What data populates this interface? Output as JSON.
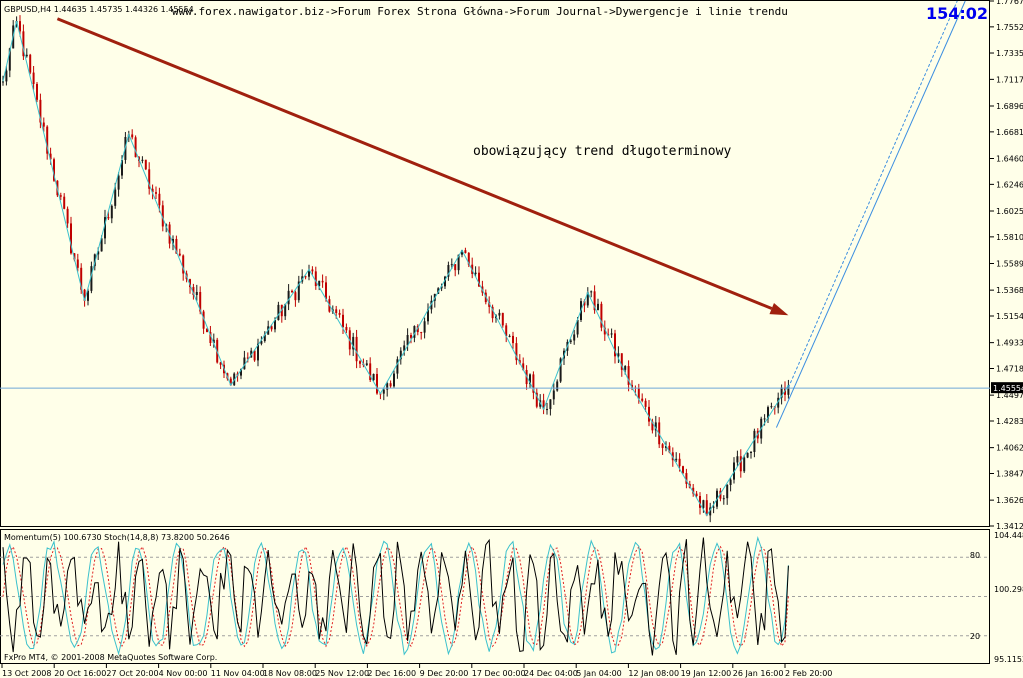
{
  "window": {
    "symbol_info": "GBPUSD,H4  1.44635 1.45735 1.44326 1.45554",
    "breadcrumb": "www.forex.nawigator.biz->Forum Forex Strona Główna->Forum Journal->Dywergencje i linie trendu",
    "timer": "154:02",
    "annotation": "obowiązujący trend długoterminowy",
    "copyright": "FxPro MT4, © 2001-2008 MetaQuotes Software Corp."
  },
  "colors": {
    "background": "#FFFFE9",
    "bull_candle": "#1a1a1a",
    "bear_candle": "#C00000",
    "zigzag": "#3BC1CC",
    "trend_arrow": "#A0200E",
    "bid_line": "#6FA8D8",
    "projection": "#3B8EE0",
    "timer": "#0000EE",
    "momentum": "#000000",
    "stoch_main": "#3BC1CC",
    "stoch_signal": "#E02020"
  },
  "chart_data": [
    {
      "type": "candlestick",
      "title": "GBPUSD,H4  1.44635 1.45735 1.44326 1.45554",
      "current_price": 1.45554,
      "current_price_label": "1.45554",
      "ylim": [
        1.3412,
        1.7767
      ],
      "price_ticks": [
        "1.77670",
        "1.75525",
        "1.73355",
        "1.71170",
        "1.68960",
        "1.66815",
        "1.64605",
        "1.62460",
        "1.60250",
        "1.58105",
        "1.55895",
        "1.53685",
        "1.51540",
        "1.49330",
        "1.47185",
        "1.44975",
        "1.42830",
        "1.40620",
        "1.38475",
        "1.36265",
        "1.34120"
      ],
      "time_ticks": [
        "13 Oct 2008",
        "20 Oct 16:00",
        "27 Oct 20:00",
        "4 Nov 00:00",
        "11 Nov 04:00",
        "18 Nov 08:00",
        "25 Nov 12:00",
        "2 Dec 16:00",
        "9 Dec 20:00",
        "17 Dec 00:00",
        "24 Dec 04:00",
        "5 Jan 04:00",
        "12 Jan 08:00",
        "19 Jan 12:00",
        "26 Jan 16:00",
        "2 Feb 20:00"
      ],
      "zigzag_pivots": [
        {
          "bar": 0,
          "price": 1.71
        },
        {
          "bar": 4,
          "price": 1.76
        },
        {
          "bar": 24,
          "price": 1.528
        },
        {
          "bar": 37,
          "price": 1.666
        },
        {
          "bar": 67,
          "price": 1.458
        },
        {
          "bar": 90,
          "price": 1.554
        },
        {
          "bar": 111,
          "price": 1.451
        },
        {
          "bar": 135,
          "price": 1.57
        },
        {
          "bar": 159,
          "price": 1.438
        },
        {
          "bar": 172,
          "price": 1.535
        },
        {
          "bar": 185,
          "price": 1.456
        },
        {
          "bar": 207,
          "price": 1.35
        },
        {
          "bar": 231,
          "price": 1.458
        }
      ],
      "trendline": {
        "from": {
          "bar": 16,
          "price": 1.762
        },
        "to": {
          "bar": 231,
          "price": 1.516
        }
      },
      "projection": {
        "from": {
          "bar": 231,
          "price": 1.456
        },
        "to": {
          "bar": 283,
          "price": 1.7767
        }
      }
    },
    {
      "type": "line",
      "title": "Momentum(5) 100.6730  Stoch(14,8,8) 73.8200 50.2646",
      "momentum_value": 100.673,
      "stoch_main": 73.82,
      "stoch_signal": 50.2646,
      "left_ticks": [
        "80",
        "20"
      ],
      "right_ticks": [
        "104.448",
        "100.2988",
        "95.1152"
      ],
      "levels": [
        80,
        50,
        20
      ],
      "ylim": [
        0,
        100
      ]
    }
  ]
}
